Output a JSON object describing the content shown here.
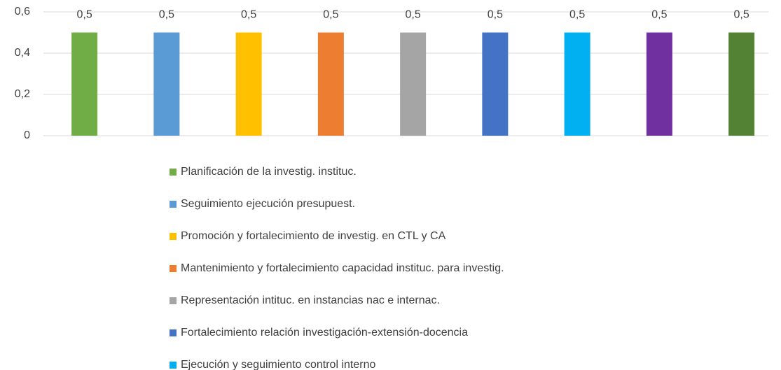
{
  "chart_data": {
    "type": "bar",
    "categories": [
      null
    ],
    "series": [
      {
        "name": "Planificación de la investig. instituc.",
        "color": "#70ad47",
        "values": [
          0.5
        ],
        "value_labels": [
          "0,5"
        ]
      },
      {
        "name": "Seguimiento ejecución presupuest.",
        "color": "#5b9bd5",
        "values": [
          0.5
        ],
        "value_labels": [
          "0,5"
        ]
      },
      {
        "name": "Promoción y fortalecimiento de investig. en CTL y CA",
        "color": "#ffc000",
        "values": [
          0.5
        ],
        "value_labels": [
          "0,5"
        ]
      },
      {
        "name": "Mantenimiento y fortalecimiento capacidad instituc. para investig.",
        "color": "#ed7d31",
        "values": [
          0.5
        ],
        "value_labels": [
          "0,5"
        ]
      },
      {
        "name": "Representación intituc. en instancias nac e internac.",
        "color": "#a5a5a5",
        "values": [
          0.5
        ],
        "value_labels": [
          "0,5"
        ]
      },
      {
        "name": "Fortalecimiento relación investigación-extensión-docencia",
        "color": "#4472c4",
        "values": [
          0.5
        ],
        "value_labels": [
          "0,5"
        ]
      },
      {
        "name": "Ejecución y seguimiento control interno",
        "color": "#00b0f0",
        "values": [
          0.5
        ],
        "value_labels": [
          "0,5"
        ]
      },
      {
        "color": "#7030a0",
        "values": [
          0.5
        ],
        "value_labels": [
          "0,5"
        ]
      },
      {
        "color": "#548235",
        "values": [
          0.5
        ],
        "value_labels": [
          "0,5"
        ]
      }
    ],
    "ylim": [
      0,
      0.6
    ],
    "yticks": [
      0,
      {
        "value": 0.2,
        "label": "0,2"
      },
      {
        "value": 0.4,
        "label": "0,4"
      },
      {
        "value": 0.6,
        "label": "0,6"
      }
    ],
    "grid": true,
    "legend": "bottom"
  }
}
